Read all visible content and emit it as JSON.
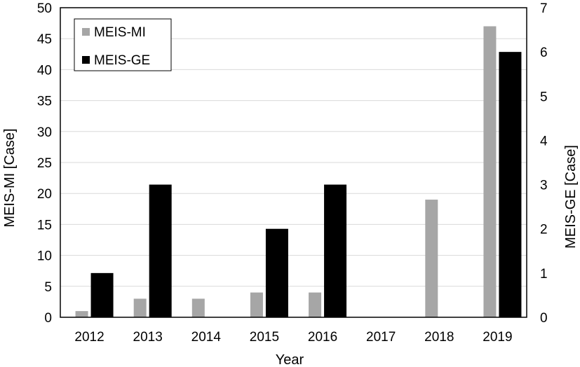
{
  "chart_data": {
    "type": "bar",
    "title": "",
    "xlabel": "Year",
    "categories": [
      "2012",
      "2013",
      "2014",
      "2015",
      "2016",
      "2017",
      "2018",
      "2019"
    ],
    "series": [
      {
        "name": "MEIS-MI",
        "axis": "left",
        "color": "#a6a6a6",
        "values": [
          1,
          3,
          3,
          4,
          4,
          0,
          19,
          47
        ]
      },
      {
        "name": "MEIS-GE",
        "axis": "right",
        "color": "#000000",
        "values": [
          1,
          3,
          0,
          2,
          3,
          0,
          0,
          6
        ]
      }
    ],
    "ylabel_left": "MEIS-MI [Case]",
    "ylabel_right": "MEIS-GE [Case]",
    "ylim_left": [
      0,
      50
    ],
    "ylim_right": [
      0,
      7
    ],
    "yticks_left": [
      "0",
      "5",
      "10",
      "15",
      "20",
      "25",
      "30",
      "35",
      "40",
      "45",
      "50"
    ],
    "yticks_right": [
      "0",
      "1",
      "2",
      "3",
      "4",
      "5",
      "6",
      "7"
    ],
    "grid": true,
    "legend_position": "top-left"
  }
}
